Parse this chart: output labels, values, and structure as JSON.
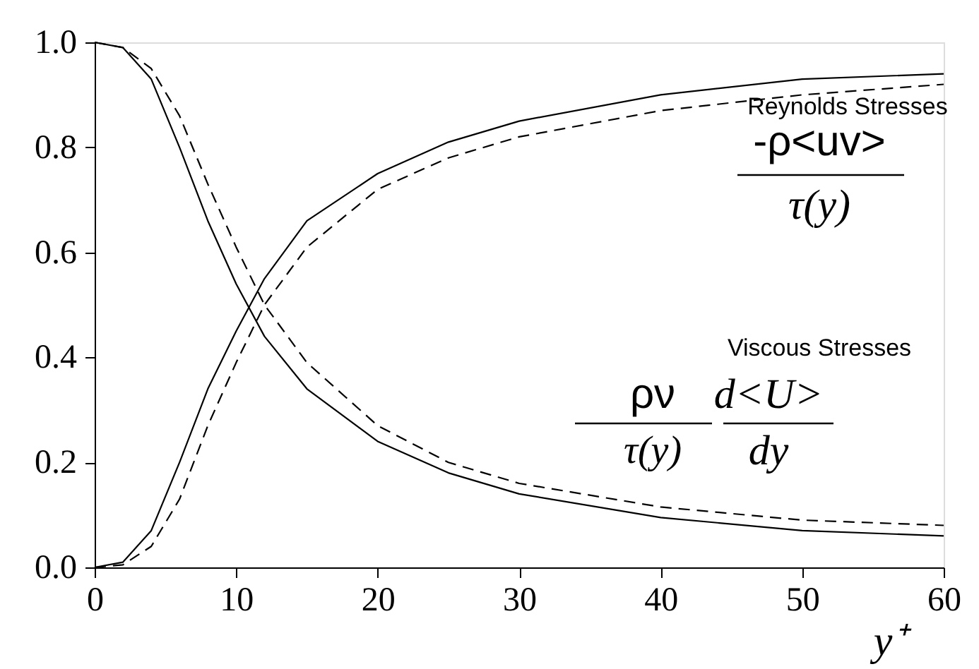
{
  "chart_data": {
    "type": "line",
    "xlabel": "y⁺",
    "x": [
      0,
      2,
      4,
      6,
      8,
      10,
      12,
      15,
      20,
      25,
      30,
      40,
      50,
      60
    ],
    "series": [
      {
        "color": "#000000",
        "line_style": "solid",
        "values": [
          1.0,
          0.99,
          0.93,
          0.8,
          0.66,
          0.54,
          0.44,
          0.34,
          0.24,
          0.18,
          0.14,
          0.095,
          0.07,
          0.06
        ]
      },
      {
        "color": "#000000",
        "line_style": "dashed",
        "values": [
          1.0,
          0.99,
          0.95,
          0.86,
          0.73,
          0.61,
          0.5,
          0.39,
          0.27,
          0.2,
          0.16,
          0.115,
          0.09,
          0.08
        ]
      },
      {
        "color": "#000000",
        "line_style": "solid",
        "values": [
          0.0,
          0.01,
          0.07,
          0.2,
          0.34,
          0.45,
          0.55,
          0.66,
          0.75,
          0.81,
          0.85,
          0.9,
          0.93,
          0.94
        ]
      },
      {
        "color": "#000000",
        "line_style": "dashed",
        "values": [
          0.0,
          0.005,
          0.04,
          0.13,
          0.27,
          0.39,
          0.5,
          0.61,
          0.72,
          0.78,
          0.82,
          0.87,
          0.9,
          0.92
        ]
      }
    ],
    "xlim": [
      0,
      60
    ],
    "xticks": [
      0,
      10,
      20,
      30,
      40,
      50,
      60
    ],
    "ylim": [
      0,
      1
    ],
    "yticks": [
      {
        "value": 0,
        "label": "0.0"
      },
      {
        "value": 0.2,
        "label": "0.2"
      },
      {
        "value": 0.4,
        "label": "0.4"
      },
      {
        "value": 0.6,
        "label": "0.6"
      },
      {
        "value": 0.8,
        "label": "0.8"
      },
      {
        "value": 1,
        "label": "1.0"
      }
    ],
    "grid": false,
    "marker": "none",
    "annotations": [
      "Reynolds Stresses",
      "-ρ<uv>",
      "τ(y)",
      "Viscous Stresses",
      "ρν",
      "τ(y)",
      "d<U>",
      "dy"
    ]
  }
}
